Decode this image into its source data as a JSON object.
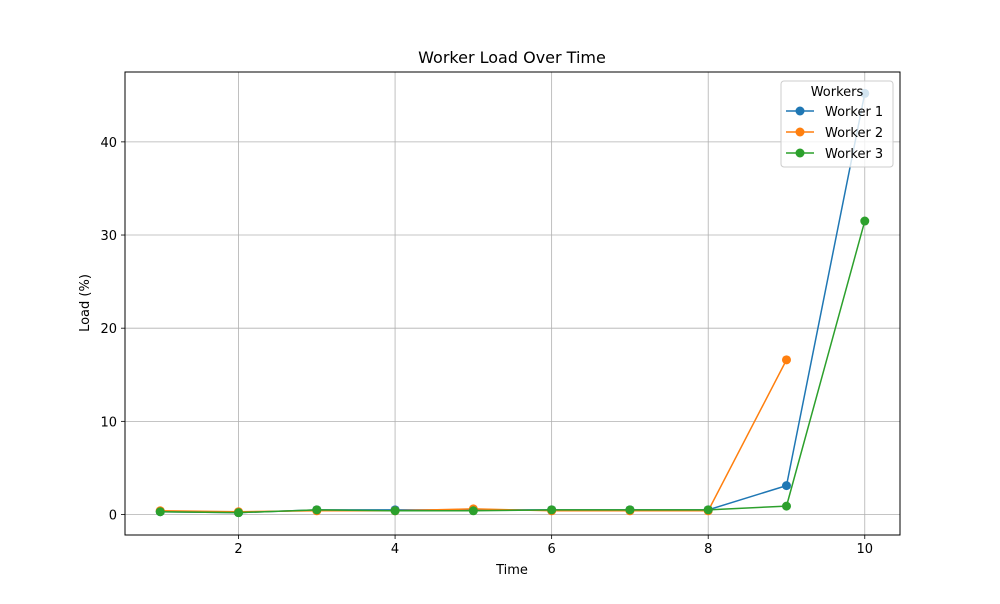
{
  "chart_data": {
    "type": "line",
    "title": "Worker Load Over Time",
    "xlabel": "Time",
    "ylabel": "Load (%)",
    "xlim": [
      0.55,
      10.45
    ],
    "ylim": [
      -2.2,
      47.5
    ],
    "x_ticks": [
      2,
      4,
      6,
      8,
      10
    ],
    "y_ticks": [
      0,
      10,
      20,
      30,
      40
    ],
    "grid": true,
    "legend": {
      "title": "Workers",
      "placement": "top-right"
    },
    "x": [
      1,
      2,
      3,
      4,
      5,
      6,
      7,
      8,
      9,
      10
    ],
    "series": [
      {
        "name": "Worker 1",
        "color": "#1f77b4",
        "values": [
          0.3,
          0.2,
          0.5,
          0.5,
          0.5,
          0.5,
          0.5,
          0.5,
          3.1,
          45.2
        ]
      },
      {
        "name": "Worker 2",
        "color": "#ff7f0e",
        "values": [
          0.4,
          0.3,
          0.4,
          0.4,
          0.6,
          0.4,
          0.4,
          0.4,
          16.6,
          null
        ]
      },
      {
        "name": "Worker 3",
        "color": "#2ca02c",
        "values": [
          0.3,
          0.2,
          0.5,
          0.4,
          0.4,
          0.5,
          0.5,
          0.5,
          0.9,
          31.5
        ]
      }
    ]
  }
}
